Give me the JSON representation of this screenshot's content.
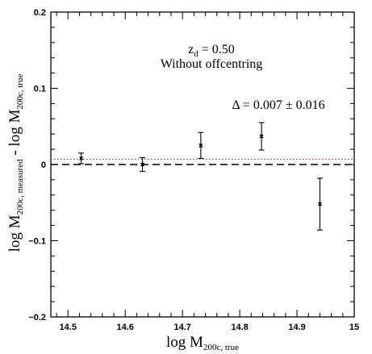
{
  "chart_data": {
    "type": "scatter",
    "xlabel": {
      "main": "log M",
      "sub": "200c, true"
    },
    "ylabel": {
      "part1": "log M",
      "sub1": "200c, measured",
      "part2": " - log M",
      "sub2": "200c, true"
    },
    "xlim": [
      14.47,
      15.0
    ],
    "ylim": [
      -0.2,
      0.2
    ],
    "x_ticks": [
      14.5,
      14.6,
      14.7,
      14.8,
      14.9,
      15.0
    ],
    "x_tick_labels": [
      "14.5",
      "14.6",
      "14.7",
      "14.8",
      "14.9",
      "15"
    ],
    "y_ticks": [
      -0.2,
      -0.1,
      0.0,
      0.1,
      0.2
    ],
    "y_tick_labels": [
      "−0.2",
      "−0.1",
      "0",
      "0.1",
      "0.2"
    ],
    "points": [
      {
        "x": 14.523,
        "y": 0.008,
        "err": 0.007
      },
      {
        "x": 14.63,
        "y": 0.0,
        "err": 0.009
      },
      {
        "x": 14.732,
        "y": 0.025,
        "err": 0.017
      },
      {
        "x": 14.838,
        "y": 0.037,
        "err": 0.018
      },
      {
        "x": 14.94,
        "y": -0.052,
        "err": 0.034
      }
    ],
    "zero_line": {
      "y": 0.0,
      "style": "dashed",
      "color": "#000000"
    },
    "mean_line": {
      "y": 0.007,
      "style": "dotted",
      "color": "#e0302a"
    },
    "annotations": {
      "redshift": {
        "main": "z",
        "sub": "d",
        "rest": " = 0.50"
      },
      "offcentring": "Without offcentring",
      "delta": "Δ = 0.007 ± 0.016"
    },
    "grid": false
  }
}
